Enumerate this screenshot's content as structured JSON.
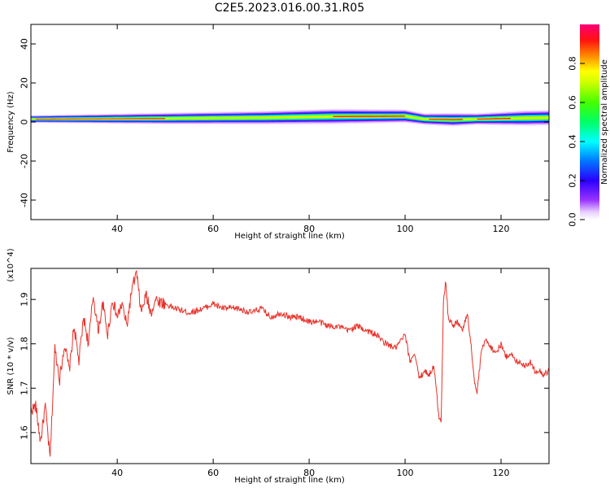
{
  "figure_title": "C2E5.2023.016.00.31.R05",
  "chart_data": [
    {
      "type": "heatmap",
      "xlabel": "Height of straight line (km)",
      "ylabel": "Frequency (Hz)",
      "xlim": [
        22,
        130
      ],
      "ylim": [
        -50,
        50
      ],
      "xticks": [
        40,
        60,
        80,
        100,
        120
      ],
      "yticks": [
        -40,
        -20,
        0,
        20,
        40
      ],
      "colorbar": {
        "label": "Normalized spectral amplitude",
        "range": [
          0,
          1
        ],
        "ticks": [
          "0.0",
          "0.2",
          "0.4",
          "0.6",
          "0.8"
        ],
        "colormap": "rainbow (purple to magenta)"
      },
      "band": {
        "center_hz": [
          [
            23,
            1.5
          ],
          [
            50,
            1.8
          ],
          [
            70,
            2.2
          ],
          [
            85,
            2.8
          ],
          [
            100,
            3
          ],
          [
            104,
            1.5
          ],
          [
            110,
            1.2
          ],
          [
            115,
            1.5
          ],
          [
            125,
            2
          ],
          [
            130,
            2.2
          ]
        ],
        "half_width_hz": [
          [
            23,
            2
          ],
          [
            50,
            3
          ],
          [
            70,
            3.5
          ],
          [
            85,
            4
          ],
          [
            100,
            3.5
          ],
          [
            104,
            3
          ],
          [
            110,
            3.5
          ],
          [
            115,
            3
          ],
          [
            125,
            4
          ],
          [
            130,
            4
          ]
        ],
        "peak_segments_km": [
          [
            23,
            50
          ],
          [
            85,
            100
          ],
          [
            105,
            112
          ],
          [
            115,
            122
          ]
        ]
      }
    },
    {
      "type": "line",
      "xlabel": "Height of straight line (km)",
      "ylabel": "SNR (10 * v/v)",
      "y_multiplier": "(x10^4)",
      "xlim": [
        22,
        130
      ],
      "ylim": [
        1.53,
        1.97
      ],
      "xticks": [
        40,
        60,
        80,
        100,
        120
      ],
      "yticks": [
        1.6,
        1.7,
        1.8,
        1.9
      ],
      "series_color": "#e8322a",
      "x": [
        22,
        23,
        24,
        25,
        26,
        27,
        28,
        29,
        30,
        31,
        32,
        33,
        34,
        35,
        36,
        37,
        38,
        39,
        40,
        41,
        42,
        43,
        44,
        45,
        46,
        47,
        48,
        50,
        52,
        55,
        58,
        60,
        62,
        65,
        68,
        70,
        72,
        74,
        76,
        78,
        80,
        82,
        84,
        86,
        88,
        90,
        92,
        94,
        96,
        98,
        100,
        101,
        102,
        103,
        104,
        105,
        106,
        107,
        107.5,
        108,
        108.5,
        109,
        110,
        111,
        112,
        113,
        114,
        114.5,
        115,
        116,
        117,
        118,
        119,
        120,
        121,
        122,
        123,
        124,
        125,
        126,
        127,
        128,
        129,
        130
      ],
      "y": [
        1.65,
        1.66,
        1.58,
        1.66,
        1.54,
        1.79,
        1.72,
        1.8,
        1.74,
        1.84,
        1.76,
        1.86,
        1.8,
        1.91,
        1.83,
        1.89,
        1.82,
        1.9,
        1.86,
        1.89,
        1.84,
        1.92,
        1.96,
        1.87,
        1.91,
        1.87,
        1.9,
        1.89,
        1.88,
        1.87,
        1.88,
        1.89,
        1.88,
        1.88,
        1.87,
        1.88,
        1.86,
        1.87,
        1.86,
        1.86,
        1.85,
        1.85,
        1.84,
        1.84,
        1.83,
        1.84,
        1.83,
        1.82,
        1.8,
        1.79,
        1.82,
        1.76,
        1.78,
        1.72,
        1.74,
        1.73,
        1.75,
        1.64,
        1.62,
        1.9,
        1.94,
        1.86,
        1.84,
        1.85,
        1.83,
        1.87,
        1.77,
        1.71,
        1.69,
        1.79,
        1.81,
        1.79,
        1.78,
        1.8,
        1.77,
        1.78,
        1.76,
        1.76,
        1.75,
        1.76,
        1.74,
        1.74,
        1.73,
        1.74
      ]
    }
  ]
}
